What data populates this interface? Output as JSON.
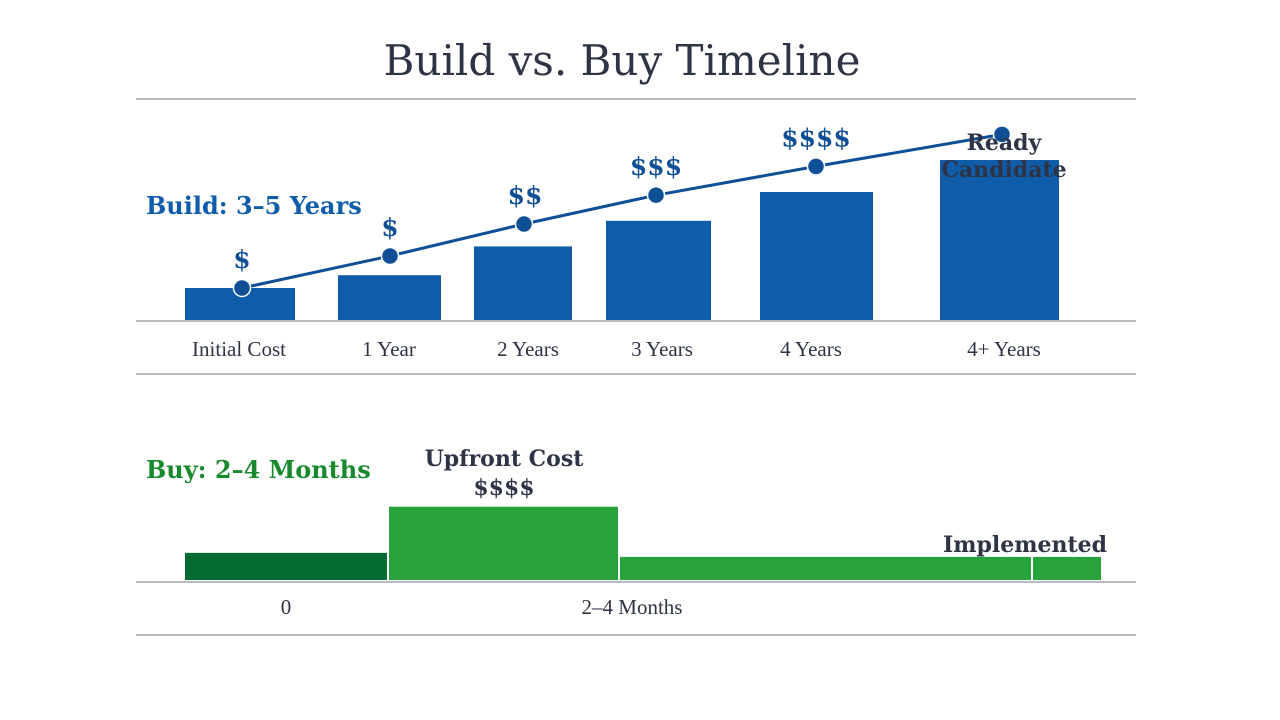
{
  "title": "Build vs. Buy Timeline",
  "colors": {
    "build": "#0f5cab",
    "build_line": "#0f4f96",
    "buy_dark": "#046c32",
    "buy": "#28a23a",
    "text": "#2e3445",
    "rule": "#b8bbc0"
  },
  "chart_data": [
    {
      "type": "bar",
      "title": "Build: 3–5 Years",
      "categories": [
        "Initial Cost",
        "1 Year",
        "2 Years",
        "3 Years",
        "4 Years",
        "4+ Years"
      ],
      "values": [
        1,
        1.4,
        2.3,
        3.1,
        4.0,
        5.0
      ],
      "cost_labels": [
        "$",
        "$",
        "$$",
        "$$$",
        "$$$$",
        ""
      ],
      "line_values": [
        1.0,
        2.0,
        3.0,
        3.9,
        4.8,
        5.8
      ],
      "end_annotation": [
        "Ready",
        "Candidate"
      ],
      "ylim": [
        0,
        6.5
      ]
    },
    {
      "type": "bar",
      "title": "Buy: 2–4 Months",
      "segments": [
        {
          "start": 0,
          "end": 1,
          "value": 1.0,
          "color_role": "buy_dark"
        },
        {
          "start": 1,
          "end": 2,
          "value": 2.7,
          "color_role": "buy"
        },
        {
          "start": 2,
          "end": 4,
          "value": 0.85,
          "color_role": "buy"
        }
      ],
      "tick_labels": [
        "0",
        "2–4 Months"
      ],
      "annotations": {
        "upfront": [
          "Upfront Cost",
          "$$$$"
        ],
        "implemented": "Implemented"
      },
      "ylim": [
        0,
        3.5
      ]
    }
  ]
}
